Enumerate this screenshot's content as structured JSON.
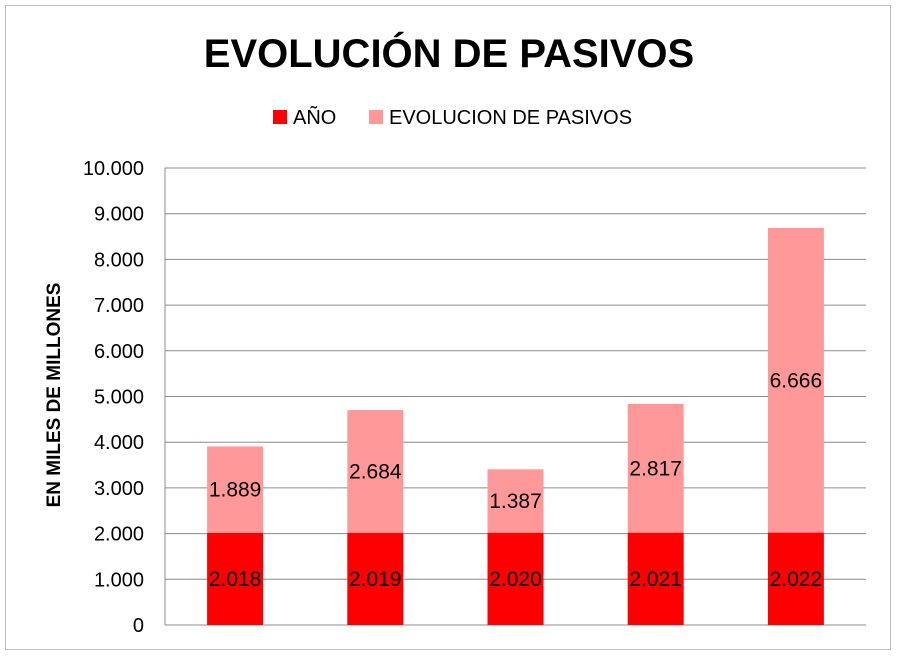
{
  "chart_data": {
    "type": "bar",
    "stacked": true,
    "title": "EVOLUCIÓN DE PASIVOS",
    "xlabel": "",
    "ylabel": "EN MILES DE MILLONES",
    "ylim": [
      0,
      10000
    ],
    "yticks": [
      0,
      1000,
      2000,
      3000,
      4000,
      5000,
      6000,
      7000,
      8000,
      9000,
      10000
    ],
    "ytick_labels": [
      "0",
      "1.000",
      "2.000",
      "3.000",
      "4.000",
      "5.000",
      "6.000",
      "7.000",
      "8.000",
      "9.000",
      "10.000"
    ],
    "grid": true,
    "legend_position": "top",
    "categories": [
      "",
      "",
      "",
      "",
      ""
    ],
    "series": [
      {
        "name": "AÑO",
        "color": "#ff0000",
        "values": [
          2018,
          2019,
          2020,
          2021,
          2022
        ],
        "labels": [
          "2.018",
          "2.019",
          "2.020",
          "2.021",
          "2.022"
        ]
      },
      {
        "name": "EVOLUCION DE PASIVOS",
        "color": "#ff9999",
        "values": [
          1889,
          2684,
          1387,
          2817,
          6666
        ],
        "labels": [
          "1.889",
          "2.684",
          "1.387",
          "2.817",
          "6.666"
        ]
      }
    ]
  }
}
